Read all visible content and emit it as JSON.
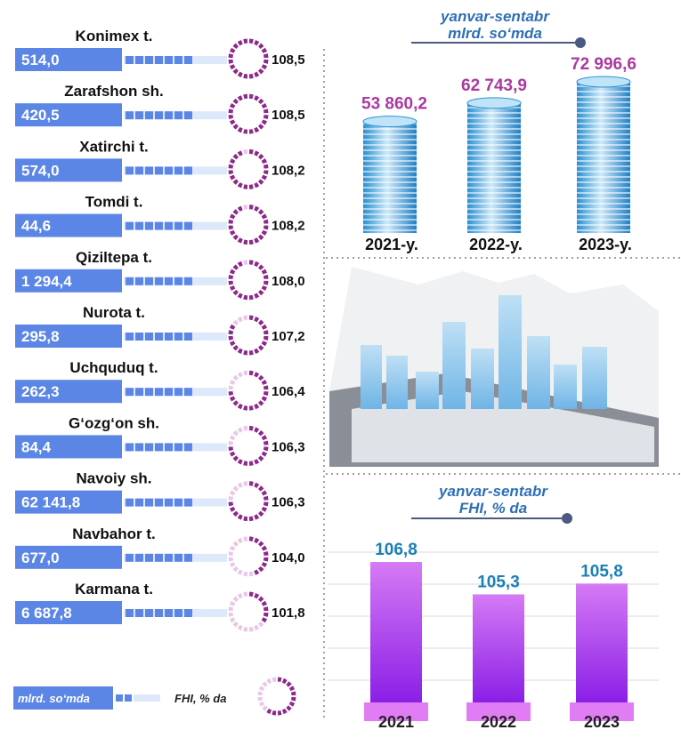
{
  "left_panel": {
    "rows": [
      {
        "name": "Konimex t.",
        "value": "514,0",
        "index": "108,5"
      },
      {
        "name": "Zarafshon sh.",
        "value": "420,5",
        "index": "108,5"
      },
      {
        "name": "Xatirchi t.",
        "value": "574,0",
        "index": "108,2"
      },
      {
        "name": "Tomdi t.",
        "value": "44,6",
        "index": "108,2"
      },
      {
        "name": "Qiziltepa t.",
        "value": "1 294,4",
        "index": "108,0"
      },
      {
        "name": "Nurota t.",
        "value": "295,8",
        "index": "107,2"
      },
      {
        "name": "Uchquduq t.",
        "value": "262,3",
        "index": "106,4"
      },
      {
        "name": "G‘ozg‘on sh.",
        "value": "84,4",
        "index": "106,3"
      },
      {
        "name": "Navoiy sh.",
        "value": "62 141,8",
        "index": "106,3"
      },
      {
        "name": "Navbahor t.",
        "value": "677,0",
        "index": "104,0"
      },
      {
        "name": "Karmana t.",
        "value": "6 687,8",
        "index": "101,8"
      }
    ],
    "legend": {
      "value_label": "mlrd. so‘mda",
      "index_label": "FHI, % da"
    }
  },
  "colors": {
    "blue": "#5b86e5",
    "blue_light": "#dde8fb",
    "purple": "#8e2a8a",
    "purple_light": "#e8c8e6",
    "bar_violet": "#b04ae8",
    "bar_top": "#d98ff5"
  },
  "chart_data": [
    {
      "type": "bar",
      "caption": [
        "yanvar-sentabr",
        "mlrd. so‘mda"
      ],
      "categories": [
        "2021-y.",
        "2022-y.",
        "2023-y."
      ],
      "values": [
        53860.2,
        62743.9,
        72996.6
      ],
      "value_labels": [
        "53 860,2",
        "62 743,9",
        "72 996,6"
      ]
    },
    {
      "type": "bar",
      "caption": [
        "yanvar-sentabr",
        "FHI, % da"
      ],
      "categories": [
        "2021",
        "2022",
        "2023"
      ],
      "values": [
        106.8,
        105.3,
        105.8
      ],
      "value_labels": [
        "106,8",
        "105,3",
        "105,8"
      ]
    }
  ]
}
